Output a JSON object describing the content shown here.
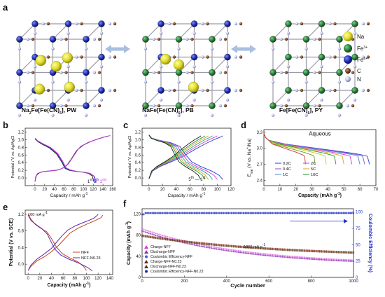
{
  "panel_a": {
    "letter": "a",
    "structures": [
      {
        "formula_main": "Na",
        "sub1": "2",
        "mid": "Fe[Fe(CN)",
        "sub2": "6",
        "tail": "], PW"
      },
      {
        "formula_main": "NaFe[Fe(CN)",
        "sub1": "6",
        "mid": "",
        "sub2": "",
        "tail": "], PB"
      },
      {
        "formula_main": "Fe[Fe(CN)",
        "sub1": "6",
        "mid": "",
        "sub2": "",
        "tail": "], PY"
      }
    ],
    "legend": [
      {
        "label": "Na",
        "color": "#e0dc2a"
      },
      {
        "label": "Fe",
        "sup": "3+",
        "color": "#2a7d3a"
      },
      {
        "label": "Fe",
        "sup": "2+",
        "color": "#1f2fb5"
      },
      {
        "label": "C",
        "color": "#7a4a2a"
      },
      {
        "label": "N",
        "color": "#b8bfe8"
      }
    ]
  },
  "chart_data": [
    {
      "id": "b",
      "letter": "b",
      "type": "line",
      "xlabel": "Capacity / mAh g",
      "xlabel_sup": "-1",
      "ylabel": "Potential / V vs. Ag/AgCl",
      "xlim": [
        -20,
        160
      ],
      "ylim": [
        -0.2,
        1.3
      ],
      "xticks": [
        0,
        20,
        40,
        60,
        80,
        100,
        120,
        140,
        160
      ],
      "yticks": [
        0.0,
        0.2,
        0.4,
        0.6,
        0.8,
        1.0,
        1.2
      ],
      "ytick_labels": [
        "0.0",
        "0.2",
        "0.4",
        "0.6",
        "0.8",
        "1.0",
        "1.2"
      ],
      "annotation": {
        "parts": [
          {
            "t": "1",
            "c": "#1a1a1a"
          },
          {
            "t": "st",
            "c": "#1a1a1a",
            "sup": true
          },
          {
            "t": " 5",
            "c": "#2b3dd0"
          },
          {
            "t": "th",
            "c": "#2b3dd0",
            "sup": true
          },
          {
            "t": " 2",
            "c": "#d23ad2"
          },
          {
            "t": "nd",
            "c": "#d23ad2",
            "sup": true
          }
        ],
        "x": 108,
        "y": -0.13
      },
      "series": [
        {
          "color": "#1a1a1a",
          "charge": [
            [
              0,
              -0.1
            ],
            [
              2,
              0.05
            ],
            [
              6,
              0.12
            ],
            [
              15,
              0.16
            ],
            [
              30,
              0.18
            ],
            [
              45,
              0.2
            ],
            [
              55,
              0.24
            ],
            [
              65,
              0.32
            ],
            [
              75,
              0.5
            ],
            [
              85,
              0.7
            ],
            [
              95,
              0.83
            ],
            [
              110,
              0.93
            ],
            [
              125,
              1.0
            ],
            [
              140,
              1.06
            ],
            [
              150,
              1.09
            ]
          ],
          "discharge": [
            [
              0,
              1.02
            ],
            [
              6,
              0.95
            ],
            [
              15,
              0.88
            ],
            [
              30,
              0.78
            ],
            [
              45,
              0.62
            ],
            [
              55,
              0.42
            ],
            [
              62,
              0.25
            ],
            [
              70,
              0.2
            ],
            [
              85,
              0.17
            ],
            [
              100,
              0.15
            ],
            [
              110,
              0.12
            ],
            [
              118,
              0.05
            ],
            [
              122,
              -0.12
            ]
          ]
        },
        {
          "color": "#2b3dd0",
          "charge": [
            [
              0,
              -0.1
            ],
            [
              3,
              0.06
            ],
            [
              8,
              0.13
            ],
            [
              18,
              0.17
            ],
            [
              33,
              0.19
            ],
            [
              48,
              0.21
            ],
            [
              58,
              0.26
            ],
            [
              68,
              0.36
            ],
            [
              78,
              0.55
            ],
            [
              88,
              0.74
            ],
            [
              100,
              0.86
            ],
            [
              115,
              0.95
            ],
            [
              130,
              1.02
            ],
            [
              143,
              1.07
            ],
            [
              153,
              1.1
            ]
          ],
          "discharge": [
            [
              0,
              1.03
            ],
            [
              6,
              0.96
            ],
            [
              16,
              0.89
            ],
            [
              31,
              0.79
            ],
            [
              46,
              0.63
            ],
            [
              56,
              0.43
            ],
            [
              63,
              0.26
            ],
            [
              72,
              0.2
            ],
            [
              87,
              0.17
            ],
            [
              102,
              0.15
            ],
            [
              113,
              0.12
            ],
            [
              121,
              0.05
            ],
            [
              125,
              -0.12
            ]
          ]
        },
        {
          "color": "#d23ad2",
          "charge": [
            [
              0,
              -0.1
            ],
            [
              3,
              0.06
            ],
            [
              9,
              0.13
            ],
            [
              19,
              0.17
            ],
            [
              34,
              0.19
            ],
            [
              49,
              0.21
            ],
            [
              59,
              0.27
            ],
            [
              69,
              0.37
            ],
            [
              79,
              0.56
            ],
            [
              89,
              0.75
            ],
            [
              101,
              0.87
            ],
            [
              116,
              0.96
            ],
            [
              131,
              1.03
            ],
            [
              145,
              1.08
            ],
            [
              155,
              1.11
            ]
          ],
          "discharge": [
            [
              0,
              1.04
            ],
            [
              6,
              0.97
            ],
            [
              16,
              0.9
            ],
            [
              32,
              0.8
            ],
            [
              47,
              0.64
            ],
            [
              57,
              0.44
            ],
            [
              64,
              0.27
            ],
            [
              73,
              0.21
            ],
            [
              88,
              0.17
            ],
            [
              103,
              0.15
            ],
            [
              114,
              0.12
            ],
            [
              122,
              0.05
            ],
            [
              127,
              -0.12
            ]
          ]
        }
      ]
    },
    {
      "id": "c",
      "letter": "c",
      "type": "line",
      "xlabel": "Capacity / mAh g",
      "xlabel_sup": "-1",
      "ylabel": "Potential / V vs. Ag/AgCl",
      "xlim": [
        -10,
        120
      ],
      "ylim": [
        -0.2,
        1.3
      ],
      "xticks": [
        0,
        20,
        40,
        60,
        80,
        100,
        120
      ],
      "yticks": [
        0.0,
        0.2,
        0.4,
        0.6,
        0.8,
        1.0,
        1.2
      ],
      "ytick_labels": [
        "0.0",
        "0.2",
        "0.4",
        "0.6",
        "0.8",
        "1.0",
        "1.2"
      ],
      "annotation": {
        "parts": [
          {
            "t": "5",
            "c": "#1a1a1a"
          },
          {
            "t": "th",
            "c": "#1a1a1a",
            "sup": true
          },
          {
            "t": " — ",
            "c": "#1a1a1a"
          },
          {
            "t": "1",
            "c": "#1a1a1a"
          },
          {
            "t": "st",
            "c": "#1a1a1a",
            "sup": true
          }
        ],
        "x": 58,
        "y": -0.07
      },
      "series": [
        {
          "color": "#2b3dd0",
          "cap": 108
        },
        {
          "color": "#d23ad2",
          "cap": 100
        },
        {
          "color": "#1aa0a0",
          "cap": 93
        },
        {
          "color": "#e0a020",
          "cap": 87
        },
        {
          "color": "#1a9a2a",
          "cap": 82
        },
        {
          "color": "#1a1a1a",
          "cap": 76
        }
      ]
    },
    {
      "id": "d",
      "letter": "d",
      "type": "line",
      "title": "Aqueous",
      "xlabel": "Capacity (mAh g",
      "xlabel_sup": "-1",
      "xlabel_tail": ")",
      "ylabel": "E",
      "ylabel_sub": "we",
      "ylabel_tail": " (V vs. Na",
      "ylabel_sup": "+",
      "ylabel_tail2": "/Na)",
      "xlim": [
        0,
        70
      ],
      "ylim": [
        2.3,
        3.35
      ],
      "xticks": [
        0,
        10,
        20,
        30,
        40,
        50,
        60,
        70
      ],
      "yticks": [
        2.4,
        2.7,
        3.0,
        3.3
      ],
      "ytick_labels": [
        "2.4",
        "2.7",
        "3.0",
        "3.3"
      ],
      "legend": [
        {
          "label": "0.2C",
          "color": "#2b3dd0"
        },
        {
          "label": "0.4C",
          "color": "#8a50c8"
        },
        {
          "label": "1C",
          "color": "#4a8ad8"
        },
        {
          "label": "2C",
          "color": "#d23ad2"
        },
        {
          "label": "5C",
          "color": "#e0a020"
        },
        {
          "label": "10C",
          "color": "#1a9a2a"
        }
      ],
      "series": [
        {
          "name": "0.2C",
          "color": "#2b3dd0",
          "cap": 66
        },
        {
          "name": "0.4C",
          "color": "#8a50c8",
          "cap": 63
        },
        {
          "name": "1C",
          "color": "#4a8ad8",
          "cap": 60
        },
        {
          "name": "2C",
          "color": "#d23ad2",
          "cap": 55
        },
        {
          "name": "5C",
          "color": "#e0a020",
          "cap": 50
        },
        {
          "name": "10C",
          "color": "#1a9a2a",
          "cap": 45
        },
        {
          "name": "",
          "color": "#c8c820",
          "cap": 39
        },
        {
          "name": "",
          "color": "#6a9a2a",
          "cap": 32
        },
        {
          "name": "",
          "color": "#c83a3a",
          "cap": 26
        }
      ]
    },
    {
      "id": "e",
      "letter": "e",
      "type": "line",
      "note": "100 mA g",
      "note_sup": "-1",
      "xlabel": "Capacity (mAh g",
      "xlabel_sup": "-1",
      "xlabel_tail": ")",
      "ylabel": "Potential (V vs. SCE)",
      "xlim": [
        -5,
        145
      ],
      "ylim": [
        -0.25,
        1.3
      ],
      "xticks": [
        0,
        20,
        40,
        60,
        80,
        100,
        120,
        140
      ],
      "yticks": [
        0.0,
        0.4,
        0.8,
        1.2
      ],
      "ytick_labels": [
        "0.0",
        "0.4",
        "0.8",
        "1.2"
      ],
      "legend": [
        {
          "label": "NFF",
          "color": "#c8461a"
        },
        {
          "label": "NFF-N0.23",
          "color": "#5a2ab8"
        }
      ],
      "series": [
        {
          "name": "NFF",
          "color": "#c8461a",
          "charge": [
            [
              0,
              -0.15
            ],
            [
              5,
              -0.05
            ],
            [
              15,
              0.08
            ],
            [
              28,
              0.18
            ],
            [
              40,
              0.3
            ],
            [
              52,
              0.45
            ],
            [
              62,
              0.6
            ],
            [
              72,
              0.75
            ],
            [
              85,
              0.86
            ],
            [
              100,
              0.96
            ],
            [
              115,
              1.05
            ],
            [
              125,
              1.12
            ],
            [
              128,
              1.18
            ]
          ],
          "discharge": [
            [
              0,
              1.2
            ],
            [
              5,
              1.08
            ],
            [
              12,
              0.96
            ],
            [
              22,
              0.86
            ],
            [
              32,
              0.78
            ],
            [
              40,
              0.62
            ],
            [
              48,
              0.42
            ],
            [
              58,
              0.26
            ],
            [
              70,
              0.16
            ],
            [
              85,
              0.06
            ],
            [
              95,
              -0.05
            ],
            [
              100,
              -0.15
            ]
          ]
        },
        {
          "name": "NFF-N0.23",
          "color": "#5a2ab8",
          "charge": [
            [
              0,
              -0.15
            ],
            [
              5,
              -0.02
            ],
            [
              15,
              0.12
            ],
            [
              28,
              0.25
            ],
            [
              40,
              0.38
            ],
            [
              50,
              0.55
            ],
            [
              58,
              0.68
            ],
            [
              68,
              0.82
            ],
            [
              82,
              0.93
            ],
            [
              98,
              1.02
            ],
            [
              112,
              1.1
            ],
            [
              118,
              1.17
            ],
            [
              120,
              1.2
            ]
          ],
          "discharge": [
            [
              0,
              1.18
            ],
            [
              5,
              1.05
            ],
            [
              14,
              0.95
            ],
            [
              24,
              0.85
            ],
            [
              33,
              0.72
            ],
            [
              40,
              0.52
            ],
            [
              46,
              0.36
            ],
            [
              56,
              0.22
            ],
            [
              70,
              0.12
            ],
            [
              88,
              0.02
            ],
            [
              102,
              -0.08
            ],
            [
              110,
              -0.16
            ]
          ]
        }
      ]
    },
    {
      "id": "f",
      "letter": "f",
      "type": "scatter",
      "note": "1000 mA g",
      "note_sup": "-1",
      "xlabel": "Cycle number",
      "ylabel": "Capacity (mAh g",
      "ylabel_sup": "-1",
      "ylabel_tail": ")",
      "ylabel_right": "Coulombic Efficiency (%)",
      "xlim": [
        0,
        1000
      ],
      "ylim": [
        0,
        130
      ],
      "ylim_right": [
        0,
        105
      ],
      "xticks": [
        0,
        200,
        400,
        600,
        800,
        1000
      ],
      "yticks": [
        0,
        40,
        80,
        120
      ],
      "yticks_right": [
        0,
        25,
        50,
        75,
        100
      ],
      "legend": [
        {
          "label": "Charge-NFF",
          "color": "#d23ad2",
          "marker": "tri"
        },
        {
          "label": "Discharge-NFF",
          "color": "#8a2ab8",
          "marker": "tri"
        },
        {
          "label": "Coulombic Efficiency-NFF",
          "color": "#4a5ad8",
          "marker": "dot"
        },
        {
          "label": "Charge-NFF-N0.23",
          "color": "#7a1a1a",
          "marker": "tri"
        },
        {
          "label": "Discharge-NFF-N0.23",
          "color": "#4a3a0a",
          "marker": "tri"
        },
        {
          "label": "Coulombic Efficiency-NFF-N0.23",
          "color": "#1a2ab8",
          "marker": "dot"
        }
      ],
      "series": [
        {
          "name": "Charge-NFF",
          "color": "#e06ae0",
          "axis": "left",
          "start": 92,
          "end": 30,
          "shape": "decay"
        },
        {
          "name": "Discharge-NFF",
          "color": "#8a2ab8",
          "axis": "left",
          "start": 88,
          "end": 28,
          "shape": "decay"
        },
        {
          "name": "Charge-NFF-N0.23",
          "color": "#8a2a1a",
          "axis": "left",
          "start": 80,
          "end": 48,
          "shape": "slow"
        },
        {
          "name": "Discharge-NFF-N0.23",
          "color": "#5a3a10",
          "axis": "left",
          "start": 78,
          "end": 46,
          "shape": "slow"
        },
        {
          "name": "Coulombic Efficiency-NFF",
          "color": "#4a5ad8",
          "axis": "right",
          "start": 99,
          "end": 99,
          "shape": "flat"
        },
        {
          "name": "Coulombic Efficiency-NFF-N0.23",
          "color": "#1a2ab8",
          "axis": "right",
          "start": 98,
          "end": 98,
          "shape": "flat"
        }
      ]
    }
  ]
}
